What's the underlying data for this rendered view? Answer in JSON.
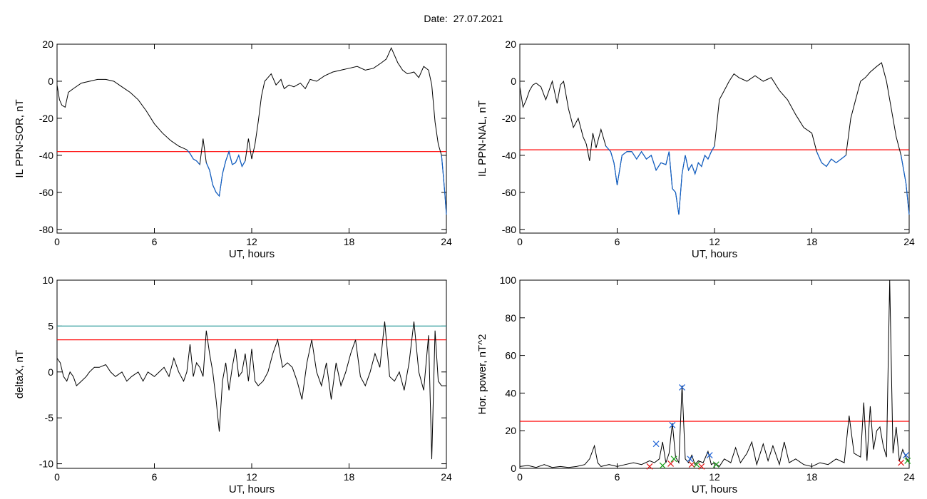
{
  "page": {
    "title": "Date:  27.07.2021"
  },
  "chart_data": [
    {
      "id": "sor",
      "type": "line",
      "xlabel": "UT, hours",
      "ylabel": "IL PPN-SOR, nT",
      "xlim": [
        0,
        24
      ],
      "ylim": [
        -82,
        20
      ],
      "xticks": [
        0,
        6,
        12,
        18,
        24
      ],
      "yticks": [
        20,
        0,
        -20,
        -40,
        -60,
        -80
      ],
      "threshold": {
        "value": -38,
        "color": "#ff0000"
      },
      "colors": {
        "line": "#000000",
        "below": "#1060c8"
      },
      "x": [
        0,
        0.15,
        0.3,
        0.5,
        0.7,
        1,
        1.5,
        2,
        2.5,
        3,
        3.5,
        4,
        4.5,
        5,
        5.5,
        6,
        6.5,
        7,
        7.5,
        8,
        8.2,
        8.4,
        8.6,
        8.8,
        9,
        9.2,
        9.4,
        9.6,
        9.8,
        10,
        10.2,
        10.4,
        10.6,
        10.8,
        11,
        11.2,
        11.4,
        11.6,
        11.8,
        12,
        12.2,
        12.4,
        12.6,
        12.8,
        13,
        13.2,
        13.5,
        13.8,
        14,
        14.3,
        14.6,
        15,
        15.3,
        15.6,
        16,
        16.5,
        17,
        17.5,
        18,
        18.5,
        19,
        19.5,
        20,
        20.3,
        20.6,
        21,
        21.3,
        21.6,
        22,
        22.3,
        22.6,
        22.9,
        23.1,
        23.3,
        23.5,
        23.7,
        23.8,
        23.9,
        24
      ],
      "y": [
        -2,
        -10,
        -13,
        -14,
        -6,
        -4,
        -1,
        0,
        1,
        1,
        0,
        -3,
        -6,
        -10,
        -16,
        -23,
        -28,
        -32,
        -35,
        -37,
        -39,
        -42,
        -43,
        -45,
        -31,
        -44,
        -48,
        -56,
        -60,
        -62,
        -50,
        -43,
        -38,
        -45,
        -44,
        -40,
        -46,
        -43,
        -31,
        -42,
        -34,
        -22,
        -8,
        0,
        2,
        4,
        -2,
        1,
        -4,
        -2,
        -3,
        -1,
        -4,
        1,
        0,
        3,
        5,
        6,
        7,
        8,
        6,
        7,
        10,
        12,
        18,
        10,
        6,
        4,
        5,
        2,
        8,
        6,
        -2,
        -22,
        -34,
        -40,
        -50,
        -60,
        -72
      ]
    },
    {
      "id": "nal",
      "type": "line",
      "xlabel": "UT, hours",
      "ylabel": "IL PPN-NAL, nT",
      "xlim": [
        0,
        24
      ],
      "ylim": [
        -82,
        20
      ],
      "xticks": [
        0,
        6,
        12,
        18,
        24
      ],
      "yticks": [
        20,
        0,
        -20,
        -40,
        -60,
        -80
      ],
      "threshold": {
        "value": -37,
        "color": "#ff0000"
      },
      "colors": {
        "line": "#000000",
        "below": "#1060c8"
      },
      "x": [
        0,
        0.2,
        0.4,
        0.6,
        0.8,
        1,
        1.3,
        1.6,
        2,
        2.3,
        2.5,
        2.7,
        3,
        3.3,
        3.6,
        3.9,
        4.1,
        4.3,
        4.5,
        4.7,
        5,
        5.3,
        5.6,
        5.8,
        6,
        6.3,
        6.6,
        6.9,
        7.2,
        7.5,
        7.8,
        8.1,
        8.4,
        8.7,
        9,
        9.2,
        9.4,
        9.6,
        9.8,
        10,
        10.2,
        10.4,
        10.6,
        10.8,
        11,
        11.2,
        11.4,
        11.6,
        11.8,
        12,
        12.3,
        12.6,
        12.9,
        13.2,
        13.5,
        14,
        14.5,
        15,
        15.5,
        16,
        16.5,
        17,
        17.5,
        18,
        18.3,
        18.6,
        18.9,
        19.2,
        19.5,
        19.8,
        20.1,
        20.4,
        20.7,
        21,
        21.3,
        21.6,
        22,
        22.3,
        22.6,
        22.9,
        23.2,
        23.5,
        23.8,
        24
      ],
      "y": [
        -3,
        -14,
        -10,
        -5,
        -2,
        -1,
        -3,
        -10,
        0,
        -12,
        -2,
        0,
        -15,
        -25,
        -20,
        -30,
        -34,
        -43,
        -28,
        -36,
        -26,
        -35,
        -38,
        -44,
        -56,
        -40,
        -38,
        -38,
        -42,
        -38,
        -42,
        -40,
        -48,
        -44,
        -45,
        -38,
        -58,
        -60,
        -72,
        -50,
        -40,
        -48,
        -45,
        -50,
        -44,
        -46,
        -40,
        -42,
        -38,
        -35,
        -10,
        -5,
        0,
        4,
        2,
        0,
        3,
        0,
        2,
        -5,
        -10,
        -18,
        -25,
        -28,
        -38,
        -44,
        -46,
        -42,
        -44,
        -42,
        -40,
        -20,
        -10,
        0,
        2,
        5,
        8,
        10,
        0,
        -15,
        -30,
        -40,
        -55,
        -72
      ]
    },
    {
      "id": "deltax",
      "type": "line",
      "xlabel": "UT, hours",
      "ylabel": "deltaX, nT",
      "xlim": [
        0,
        24
      ],
      "ylim": [
        -10.5,
        10
      ],
      "xticks": [
        0,
        6,
        12,
        18,
        24
      ],
      "yticks": [
        10,
        5,
        0,
        -5,
        -10
      ],
      "hlines": [
        {
          "value": 5,
          "color": "#2a9a9a"
        },
        {
          "value": 3.5,
          "color": "#ff0000"
        }
      ],
      "x": [
        0,
        0.2,
        0.4,
        0.6,
        0.8,
        1,
        1.2,
        1.5,
        1.8,
        2,
        2.3,
        2.6,
        3,
        3.3,
        3.6,
        4,
        4.3,
        4.6,
        5,
        5.3,
        5.6,
        6,
        6.3,
        6.6,
        6.9,
        7.2,
        7.5,
        7.8,
        8,
        8.2,
        8.4,
        8.6,
        8.8,
        9,
        9.2,
        9.4,
        9.6,
        9.8,
        10,
        10.2,
        10.4,
        10.6,
        10.8,
        11,
        11.2,
        11.4,
        11.6,
        11.8,
        12,
        12.2,
        12.4,
        12.7,
        13,
        13.3,
        13.6,
        13.9,
        14.2,
        14.5,
        14.8,
        15.1,
        15.4,
        15.7,
        16,
        16.3,
        16.6,
        16.9,
        17.2,
        17.5,
        17.8,
        18.1,
        18.4,
        18.7,
        19,
        19.3,
        19.6,
        19.9,
        20.2,
        20.5,
        20.8,
        21.1,
        21.4,
        21.7,
        22,
        22.3,
        22.6,
        22.9,
        23.1,
        23.3,
        23.5,
        23.7,
        24
      ],
      "y": [
        1.5,
        1,
        -0.5,
        -1,
        0,
        -0.5,
        -1.5,
        -1,
        -0.5,
        0,
        0.5,
        0.5,
        0.8,
        0,
        -0.5,
        0,
        -1,
        -0.5,
        0,
        -1,
        0,
        -0.5,
        0,
        0.5,
        -0.5,
        1.5,
        0,
        -1,
        0,
        3,
        -0.5,
        1,
        0.5,
        -0.5,
        4.5,
        2,
        0,
        -3,
        -6.5,
        -1,
        1,
        -2,
        0.5,
        2.5,
        -0.5,
        0,
        2,
        -1,
        2.5,
        -1,
        -1.5,
        -1,
        0,
        2,
        3.5,
        0.5,
        1,
        0.5,
        -1,
        -3,
        1,
        3.5,
        0,
        -1.5,
        1,
        -3,
        1,
        -1.5,
        0,
        2,
        3.5,
        -0.5,
        -1.5,
        0,
        2,
        0.5,
        5.5,
        -0.5,
        -1,
        0,
        -2,
        1,
        5.5,
        0,
        -2,
        4,
        -9.5,
        4.5,
        -1,
        -1.5,
        -1.5
      ]
    },
    {
      "id": "power",
      "type": "line",
      "xlabel": "UT, hours",
      "ylabel": "Hor. power, nT^2",
      "xlim": [
        0,
        24
      ],
      "ylim": [
        0,
        100
      ],
      "xticks": [
        0,
        6,
        12,
        18,
        24
      ],
      "yticks": [
        100,
        80,
        60,
        40,
        20,
        0
      ],
      "threshold": {
        "value": 25,
        "color": "#ff0000"
      },
      "x": [
        0,
        0.5,
        1,
        1.5,
        2,
        2.5,
        3,
        3.5,
        4,
        4.3,
        4.6,
        4.8,
        5,
        5.5,
        6,
        6.5,
        7,
        7.5,
        8,
        8.3,
        8.6,
        8.8,
        9,
        9.2,
        9.4,
        9.6,
        9.8,
        10,
        10.2,
        10.4,
        10.6,
        10.8,
        11,
        11.3,
        11.6,
        11.8,
        12,
        12.3,
        12.6,
        13,
        13.3,
        13.6,
        14,
        14.3,
        14.6,
        15,
        15.3,
        15.6,
        16,
        16.3,
        16.6,
        17,
        17.5,
        18,
        18.5,
        19,
        19.5,
        20,
        20.3,
        20.6,
        21,
        21.2,
        21.4,
        21.6,
        21.8,
        22,
        22.2,
        22.4,
        22.6,
        22.8,
        23,
        23.2,
        23.4,
        23.6,
        23.8,
        24
      ],
      "y": [
        1,
        1.5,
        0.5,
        2,
        0.5,
        1,
        0.5,
        1,
        2,
        5,
        12,
        3,
        1,
        2,
        1,
        2,
        3,
        2,
        4,
        3,
        5,
        14,
        3,
        8,
        24,
        6,
        3,
        44,
        5,
        3,
        7,
        2,
        4,
        3,
        9,
        2,
        3,
        1,
        5,
        3,
        11,
        3,
        8,
        14,
        2,
        13,
        4,
        12,
        2,
        14,
        3,
        5,
        2,
        1,
        3,
        2,
        5,
        3,
        28,
        8,
        6,
        35,
        4,
        33,
        10,
        20,
        22,
        12,
        6,
        100,
        8,
        22,
        4,
        10,
        6,
        3
      ],
      "markers": [
        {
          "x": 8.4,
          "y": 13,
          "color": "#1e62d6"
        },
        {
          "x": 9.4,
          "y": 23,
          "color": "#1e62d6"
        },
        {
          "x": 10.0,
          "y": 43,
          "color": "#1e62d6"
        },
        {
          "x": 10.5,
          "y": 5,
          "color": "#1e62d6"
        },
        {
          "x": 11.7,
          "y": 7,
          "color": "#1e62d6"
        },
        {
          "x": 23.8,
          "y": 7,
          "color": "#1e62d6"
        },
        {
          "x": 8.0,
          "y": 1,
          "color": "#e01818"
        },
        {
          "x": 9.3,
          "y": 2.5,
          "color": "#e01818"
        },
        {
          "x": 10.6,
          "y": 2,
          "color": "#e01818"
        },
        {
          "x": 11.2,
          "y": 1,
          "color": "#e01818"
        },
        {
          "x": 23.5,
          "y": 3,
          "color": "#e01818"
        },
        {
          "x": 8.8,
          "y": 1.5,
          "color": "#1aa01a"
        },
        {
          "x": 9.5,
          "y": 5,
          "color": "#1aa01a"
        },
        {
          "x": 10.9,
          "y": 2,
          "color": "#1aa01a"
        },
        {
          "x": 12.1,
          "y": 2,
          "color": "#1aa01a"
        },
        {
          "x": 23.9,
          "y": 4,
          "color": "#1aa01a"
        }
      ]
    }
  ]
}
